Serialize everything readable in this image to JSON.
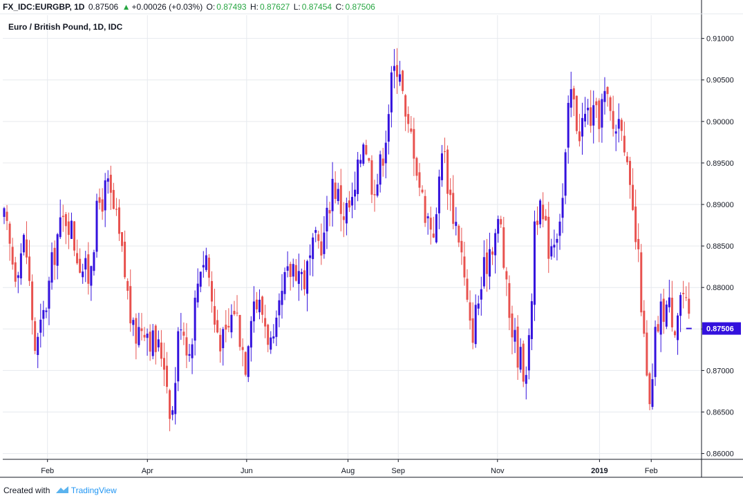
{
  "header": {
    "symbol": "FX_IDC:EURGBP, 1D",
    "last": "0.87506",
    "change": "+0.00026 (+0.03%)",
    "o_label": "O:",
    "o_value": "0.87493",
    "h_label": "H:",
    "h_value": "0.87627",
    "l_label": "L:",
    "l_value": "0.87454",
    "c_label": "C:",
    "c_value": "0.87506",
    "change_icon": "triangle-up-icon"
  },
  "footer": {
    "created_with": "Created with",
    "brand": "TradingView",
    "logo_icon": "tradingview-cloud-icon"
  },
  "colors": {
    "up": "#3311dd",
    "down": "#e8524f",
    "grid": "#e6e9ee",
    "axis": "#131722",
    "price_tag": "#3311dd"
  },
  "chart_data": {
    "type": "candlestick",
    "title": "Euro / British Pound, 1D, IDC",
    "last_price_label": "0.87506",
    "ylim": [
      0.8593,
      0.9128
    ],
    "y_ticks": [
      0.86,
      0.865,
      0.87,
      0.875,
      0.88,
      0.885,
      0.89,
      0.895,
      0.9,
      0.905,
      0.91
    ],
    "y_tick_labels": [
      "0.86000",
      "0.86500",
      "0.87000",
      "0.87500",
      "0.88000",
      "0.88500",
      "0.89000",
      "0.89500",
      "0.90000",
      "0.90500",
      "0.91000"
    ],
    "x_ticks": [
      {
        "label": "Feb",
        "pos": 0.064
      },
      {
        "label": "Apr",
        "pos": 0.207
      },
      {
        "label": "Jun",
        "pos": 0.349
      },
      {
        "label": "Aug",
        "pos": 0.494
      },
      {
        "label": "Sep",
        "pos": 0.566
      },
      {
        "label": "Nov",
        "pos": 0.708
      },
      {
        "label": "2019",
        "pos": 0.854,
        "bold": true
      },
      {
        "label": "Feb",
        "pos": 0.928
      }
    ],
    "anchors": [
      [
        0.0,
        0.888
      ],
      [
        0.015,
        0.882
      ],
      [
        0.03,
        0.886
      ],
      [
        0.045,
        0.872
      ],
      [
        0.06,
        0.878
      ],
      [
        0.075,
        0.886
      ],
      [
        0.09,
        0.889
      ],
      [
        0.105,
        0.884
      ],
      [
        0.12,
        0.881
      ],
      [
        0.135,
        0.89
      ],
      [
        0.148,
        0.892
      ],
      [
        0.16,
        0.888
      ],
      [
        0.172,
        0.882
      ],
      [
        0.185,
        0.874
      ],
      [
        0.2,
        0.876
      ],
      [
        0.215,
        0.873
      ],
      [
        0.228,
        0.872
      ],
      [
        0.24,
        0.864
      ],
      [
        0.252,
        0.877
      ],
      [
        0.265,
        0.872
      ],
      [
        0.28,
        0.883
      ],
      [
        0.29,
        0.884
      ],
      [
        0.3,
        0.876
      ],
      [
        0.315,
        0.873
      ],
      [
        0.33,
        0.878
      ],
      [
        0.345,
        0.871
      ],
      [
        0.355,
        0.879
      ],
      [
        0.37,
        0.877
      ],
      [
        0.385,
        0.872
      ],
      [
        0.4,
        0.88
      ],
      [
        0.415,
        0.883
      ],
      [
        0.43,
        0.881
      ],
      [
        0.445,
        0.885
      ],
      [
        0.458,
        0.886
      ],
      [
        0.47,
        0.893
      ],
      [
        0.485,
        0.889
      ],
      [
        0.5,
        0.89
      ],
      [
        0.515,
        0.899
      ],
      [
        0.525,
        0.893
      ],
      [
        0.535,
        0.893
      ],
      [
        0.545,
        0.898
      ],
      [
        0.555,
        0.905
      ],
      [
        0.565,
        0.908
      ],
      [
        0.575,
        0.899
      ],
      [
        0.585,
        0.898
      ],
      [
        0.597,
        0.891
      ],
      [
        0.608,
        0.888
      ],
      [
        0.618,
        0.887
      ],
      [
        0.626,
        0.898
      ],
      [
        0.64,
        0.89
      ],
      [
        0.652,
        0.886
      ],
      [
        0.662,
        0.878
      ],
      [
        0.668,
        0.874
      ],
      [
        0.68,
        0.879
      ],
      [
        0.695,
        0.885
      ],
      [
        0.71,
        0.888
      ],
      [
        0.72,
        0.878
      ],
      [
        0.732,
        0.873
      ],
      [
        0.745,
        0.87
      ],
      [
        0.752,
        0.873
      ],
      [
        0.76,
        0.89
      ],
      [
        0.77,
        0.888
      ],
      [
        0.78,
        0.885
      ],
      [
        0.79,
        0.887
      ],
      [
        0.8,
        0.891
      ],
      [
        0.81,
        0.904
      ],
      [
        0.822,
        0.899
      ],
      [
        0.835,
        0.901
      ],
      [
        0.848,
        0.9
      ],
      [
        0.86,
        0.903
      ],
      [
        0.872,
        0.899
      ],
      [
        0.885,
        0.901
      ],
      [
        0.893,
        0.892
      ],
      [
        0.902,
        0.887
      ],
      [
        0.91,
        0.881
      ],
      [
        0.918,
        0.87
      ],
      [
        0.925,
        0.864
      ],
      [
        0.932,
        0.874
      ],
      [
        0.94,
        0.877
      ],
      [
        0.95,
        0.878
      ],
      [
        0.96,
        0.876
      ],
      [
        0.97,
        0.88
      ],
      [
        0.98,
        0.8751
      ]
    ]
  }
}
